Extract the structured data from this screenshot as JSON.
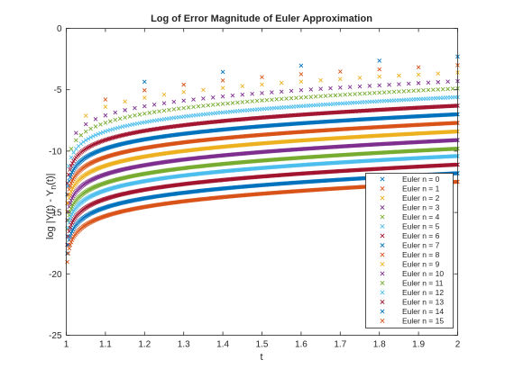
{
  "chart_data": {
    "type": "scatter",
    "title": "Log of Error Magnitude of Euler Approximation",
    "xlabel": "t",
    "ylabel_main": "log |Y(t) - Y",
    "ylabel_sub": "n",
    "ylabel_tail": "(t)|",
    "xlim": [
      1,
      2
    ],
    "ylim": [
      -25,
      0
    ],
    "xticks": [
      "1",
      "1.1",
      "1.2",
      "1.3",
      "1.4",
      "1.5",
      "1.6",
      "1.7",
      "1.8",
      "1.9",
      "2"
    ],
    "yticks": [
      "-25",
      "-20",
      "-15",
      "-10",
      "-5",
      "0"
    ],
    "grid": false,
    "legend_position": "bottom-right",
    "marker": "x",
    "series": [
      {
        "name": "Euler n = 0",
        "color": "#0072BD",
        "step": 0.2,
        "end": -2.3
      },
      {
        "name": "Euler n = 1",
        "color": "#D95319",
        "step": 0.1,
        "end": -3.0
      },
      {
        "name": "Euler n = 2",
        "color": "#EDB120",
        "step": 0.05,
        "end": -3.6
      },
      {
        "name": "Euler n = 3",
        "color": "#7E2F8E",
        "step": 0.025,
        "end": -4.3
      },
      {
        "name": "Euler n = 4",
        "color": "#77AC30",
        "step": 0.0125,
        "end": -4.9
      },
      {
        "name": "Euler n = 5",
        "color": "#4DBEEE",
        "step": 0.00625,
        "end": -5.6
      },
      {
        "name": "Euler n = 6",
        "color": "#A2142F",
        "step": 0.003125,
        "end": -6.3
      },
      {
        "name": "Euler n = 7",
        "color": "#0072BD",
        "step": 0.0025,
        "end": -7.0
      },
      {
        "name": "Euler n = 8",
        "color": "#D95319",
        "step": 0.0025,
        "end": -7.7
      },
      {
        "name": "Euler n = 9",
        "color": "#EDB120",
        "step": 0.0025,
        "end": -8.4
      },
      {
        "name": "Euler n = 10",
        "color": "#7E2F8E",
        "step": 0.0025,
        "end": -9.1
      },
      {
        "name": "Euler n = 11",
        "color": "#77AC30",
        "step": 0.0025,
        "end": -9.8
      },
      {
        "name": "Euler n = 12",
        "color": "#4DBEEE",
        "step": 0.0025,
        "end": -10.4
      },
      {
        "name": "Euler n = 13",
        "color": "#A2142F",
        "step": 0.0025,
        "end": -11.1
      },
      {
        "name": "Euler n = 14",
        "color": "#0072BD",
        "step": 0.0025,
        "end": -11.8
      },
      {
        "name": "Euler n = 15",
        "color": "#D95319",
        "step": 0.0025,
        "end": -12.5
      }
    ]
  }
}
